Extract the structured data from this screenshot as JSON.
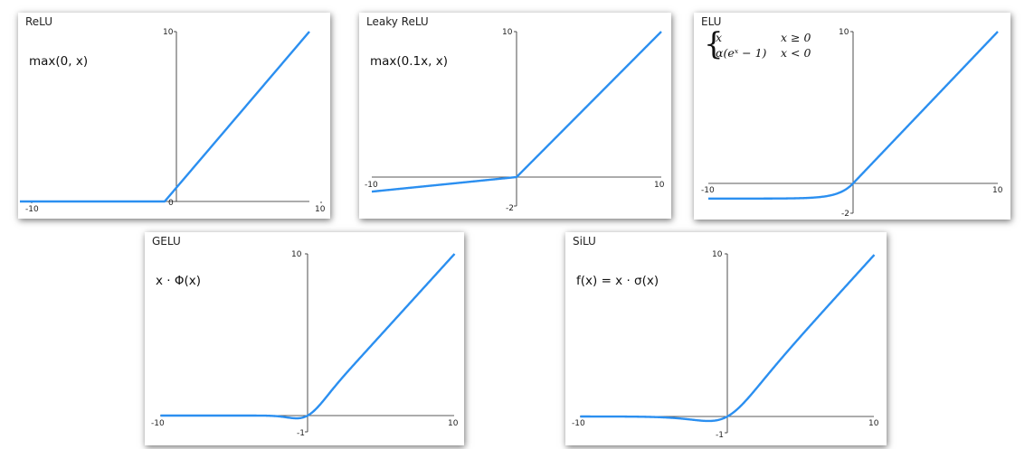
{
  "charts": [
    {
      "id": "relu",
      "title": "ReLU",
      "formula": "max(0, x)",
      "function": "relu",
      "ticks": {
        "x_min": "-10",
        "x_max": "10",
        "y_min": "0",
        "y_max": "10"
      }
    },
    {
      "id": "leaky",
      "title": "Leaky ReLU",
      "formula": "max(0.1x, x)",
      "function": "leaky_relu",
      "ticks": {
        "x_min": "-10",
        "x_max": "10",
        "y_min": "-2",
        "y_max": "10"
      }
    },
    {
      "id": "elu",
      "title": "ELU",
      "formula_cases": [
        {
          "expr": "x",
          "cond": "x ≥ 0"
        },
        {
          "expr": "α(eˣ − 1)",
          "cond": "x < 0"
        }
      ],
      "function": "elu",
      "ticks": {
        "x_min": "-10",
        "x_max": "10",
        "y_min": "-2",
        "y_max": "10"
      }
    },
    {
      "id": "gelu",
      "title": "GELU",
      "formula": "x · Φ(x)",
      "function": "gelu",
      "ticks": {
        "x_min": "-10",
        "x_max": "10",
        "y_min": "-1",
        "y_max": "10"
      }
    },
    {
      "id": "silu",
      "title": "SiLU",
      "formula": "f(x) = x · σ(x)",
      "function": "silu",
      "ticks": {
        "x_min": "-10",
        "x_max": "10",
        "y_min": "-1",
        "y_max": "10"
      }
    }
  ],
  "chart_data": [
    {
      "type": "line",
      "title": "ReLU",
      "xlim": [
        -10,
        10
      ],
      "ylim": [
        0,
        10
      ],
      "x": [
        -10,
        -5,
        0,
        5,
        10
      ],
      "y": [
        0,
        0,
        0,
        5,
        10
      ],
      "line_color": "#2b8ff0"
    },
    {
      "type": "line",
      "title": "Leaky ReLU",
      "xlim": [
        -10,
        10
      ],
      "ylim": [
        -2,
        10
      ],
      "x": [
        -10,
        -5,
        0,
        5,
        10
      ],
      "y": [
        -1,
        -0.5,
        0,
        5,
        10
      ],
      "line_color": "#2b8ff0"
    },
    {
      "type": "line",
      "title": "ELU",
      "xlim": [
        -10,
        10
      ],
      "ylim": [
        -2,
        10
      ],
      "x": [
        -10,
        -5,
        -2,
        -1,
        0,
        5,
        10
      ],
      "y": [
        -1,
        -0.99,
        -0.86,
        -0.63,
        0,
        5,
        10
      ],
      "line_color": "#2b8ff0"
    },
    {
      "type": "line",
      "title": "GELU",
      "xlim": [
        -10,
        10
      ],
      "ylim": [
        -1,
        10
      ],
      "x": [
        -10,
        -3,
        -1,
        -0.75,
        0,
        1,
        3,
        10
      ],
      "y": [
        0,
        0,
        -0.16,
        -0.17,
        0,
        0.84,
        3,
        10
      ],
      "line_color": "#2b8ff0"
    },
    {
      "type": "line",
      "title": "SiLU",
      "xlim": [
        -10,
        10
      ],
      "ylim": [
        -1,
        10
      ],
      "x": [
        -10,
        -5,
        -1.28,
        0,
        1,
        5,
        10
      ],
      "y": [
        0,
        -0.03,
        -0.28,
        0,
        0.73,
        4.97,
        10
      ],
      "line_color": "#2b8ff0"
    }
  ]
}
